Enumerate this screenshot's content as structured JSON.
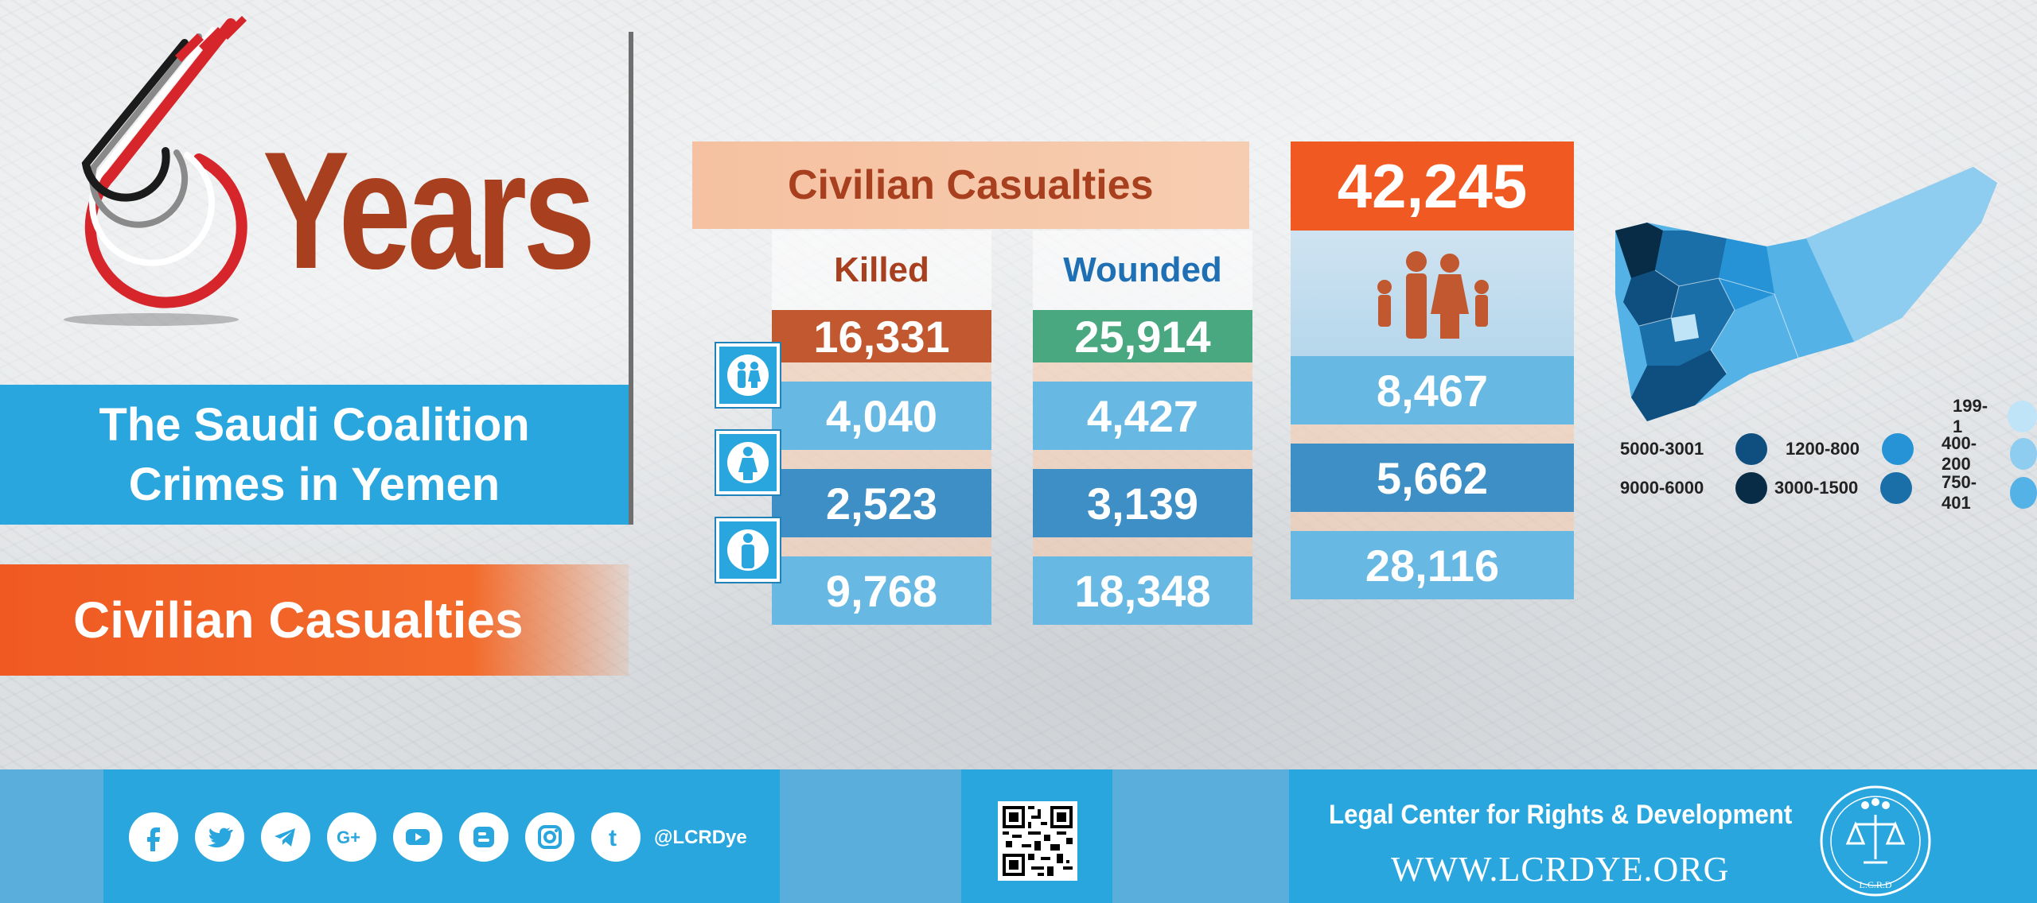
{
  "header": {
    "years_number": "6",
    "years_label": "Years",
    "subtitle_line1": "The Saudi Coalition",
    "subtitle_line2": "Crimes in Yemen",
    "section_label": "Civilian Casualties"
  },
  "table": {
    "title": "Civilian Casualties",
    "total": "42,245",
    "columns": {
      "killed_label": "Killed",
      "wounded_label": "Wounded"
    },
    "killed_total": "16,331",
    "wounded_total": "25,914",
    "rows": [
      {
        "group_icon": "children-icon",
        "killed": "4,040",
        "wounded": "4,427",
        "total": "8,467"
      },
      {
        "group_icon": "woman-icon",
        "killed": "2,523",
        "wounded": "3,139",
        "total": "5,662"
      },
      {
        "group_icon": "man-icon",
        "killed": "9,768",
        "wounded": "18,348",
        "total": "28,116"
      }
    ],
    "total_icon": "family-icon"
  },
  "legend": {
    "items": [
      {
        "label": "199-1",
        "color": "#bfe3f7"
      },
      {
        "label": "400-200",
        "color": "#8fcdf0"
      },
      {
        "label": "750-401",
        "color": "#55b2e6"
      },
      {
        "label": "1200-800",
        "color": "#2593d6"
      },
      {
        "label": "3000-1500",
        "color": "#1a6fa8"
      },
      {
        "label": "5000-3001",
        "color": "#0e4f80"
      },
      {
        "label": "9000-6000",
        "color": "#082c46"
      }
    ]
  },
  "footer": {
    "social_icons": [
      "facebook-icon",
      "twitter-icon",
      "telegram-icon",
      "google-plus-icon",
      "youtube-icon",
      "blogger-icon",
      "instagram-icon",
      "tumblr-icon"
    ],
    "handle": "@LCRDye",
    "org_name": "Legal Center for Rights & Development",
    "website": "WWW.LCRDYE.ORG",
    "seal_text": "L.C.R.D"
  },
  "colors": {
    "brand_orange": "#f05a22",
    "brand_blue": "#2aa6de",
    "brown_text": "#a8401f",
    "killed_red": "#c1582f",
    "wounded_green": "#4aa880"
  }
}
